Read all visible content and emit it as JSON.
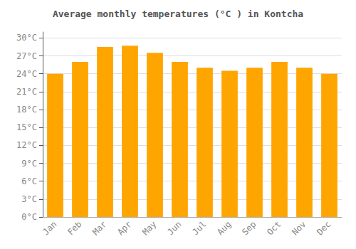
{
  "chart_data": {
    "type": "bar",
    "title": "Average monthly temperatures (°C ) in Kontcha",
    "categories": [
      "Jan",
      "Feb",
      "Mar",
      "Apr",
      "May",
      "Jun",
      "Jul",
      "Aug",
      "Sep",
      "Oct",
      "Nov",
      "Dec"
    ],
    "values": [
      24.0,
      26.0,
      28.5,
      28.7,
      27.5,
      26.0,
      25.0,
      24.5,
      25.0,
      26.0,
      25.0,
      24.0
    ],
    "color": "#FFA500",
    "ylim": [
      0,
      31
    ],
    "yticks": [
      {
        "value": 0,
        "label": "0°C"
      },
      {
        "value": 3,
        "label": "3°C"
      },
      {
        "value": 6,
        "label": "6°C"
      },
      {
        "value": 9,
        "label": "9°C"
      },
      {
        "value": 12,
        "label": "12°C"
      },
      {
        "value": 15,
        "label": "15°C"
      },
      {
        "value": 18,
        "label": "18°C"
      },
      {
        "value": 21,
        "label": "21°C"
      },
      {
        "value": 24,
        "label": "24°C"
      },
      {
        "value": 27,
        "label": "27°C"
      },
      {
        "value": 30,
        "label": "30°C"
      }
    ],
    "grid": true
  }
}
